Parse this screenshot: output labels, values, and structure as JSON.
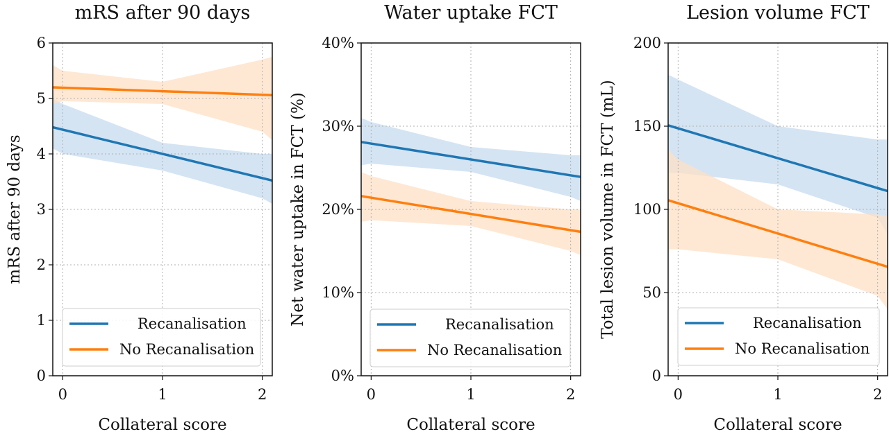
{
  "colors": {
    "recanalisation": "#1f77b4",
    "no_recanalisation": "#ff7f0e",
    "recanalisation_band": "#c6dbef",
    "no_recanalisation_band": "#fde0c5",
    "grid": "#b0b0b0"
  },
  "chart_data": [
    {
      "type": "line",
      "title": "mRS after 90 days",
      "xlabel": "Collateral score",
      "ylabel": "mRS after 90 days",
      "xlim": [
        -0.1,
        2.1
      ],
      "ylim": [
        0,
        6
      ],
      "x_ticks": [
        0,
        1,
        2
      ],
      "x_tick_labels": [
        "0",
        "1",
        "2"
      ],
      "y_ticks": [
        0,
        1,
        2,
        3,
        4,
        5,
        6
      ],
      "y_tick_labels": [
        "0",
        "1",
        "2",
        "3",
        "4",
        "5",
        "6"
      ],
      "grid": true,
      "legend_position": "lower-left",
      "series": [
        {
          "name": "Recanalisation",
          "color_key": "recanalisation",
          "x": [
            -0.1,
            2.1
          ],
          "y": [
            4.48,
            3.52
          ],
          "ci": {
            "x": [
              -0.1,
              0,
              1,
              2,
              2.1
            ],
            "lower": [
              4.1,
              4.0,
              3.7,
              3.2,
              3.1
            ],
            "upper": [
              5.0,
              4.9,
              4.2,
              4.0,
              4.0
            ]
          }
        },
        {
          "name": "No Recanalisation",
          "color_key": "no_recanalisation",
          "x": [
            -0.1,
            2.1
          ],
          "y": [
            5.2,
            5.06
          ],
          "ci": {
            "x": [
              -0.1,
              0,
              1,
              2,
              2.1
            ],
            "lower": [
              4.9,
              4.95,
              4.9,
              4.4,
              4.25
            ],
            "upper": [
              5.6,
              5.5,
              5.3,
              5.7,
              5.75
            ]
          }
        }
      ]
    },
    {
      "type": "line",
      "title": "Water uptake FCT",
      "xlabel": "Collateral score",
      "ylabel": "Net water uptake in FCT (%)",
      "xlim": [
        -0.1,
        2.1
      ],
      "ylim": [
        0,
        40
      ],
      "x_ticks": [
        0,
        1,
        2
      ],
      "x_tick_labels": [
        "0",
        "1",
        "2"
      ],
      "y_ticks": [
        0,
        10,
        20,
        30,
        40
      ],
      "y_tick_labels": [
        "0%",
        "10%",
        "20%",
        "30%",
        "40%"
      ],
      "grid": true,
      "legend_position": "lower-left",
      "series": [
        {
          "name": "Recanalisation",
          "color_key": "recanalisation",
          "x": [
            -0.1,
            2.1
          ],
          "y": [
            28.1,
            23.9
          ],
          "ci": {
            "x": [
              -0.1,
              0,
              1,
              2,
              2.1
            ],
            "lower": [
              25.3,
              25.5,
              24.5,
              21.5,
              21.0
            ],
            "upper": [
              31.0,
              30.5,
              27.5,
              26.5,
              26.5
            ]
          }
        },
        {
          "name": "No Recanalisation",
          "color_key": "no_recanalisation",
          "x": [
            -0.1,
            2.1
          ],
          "y": [
            21.6,
            17.3
          ],
          "ci": {
            "x": [
              -0.1,
              0,
              1,
              2,
              2.1
            ],
            "lower": [
              18.5,
              18.7,
              18.0,
              15.0,
              14.5
            ],
            "upper": [
              24.5,
              24.0,
              21.0,
              20.0,
              20.0
            ]
          }
        }
      ]
    },
    {
      "type": "line",
      "title": "Lesion volume FCT",
      "xlabel": "Collateral score",
      "ylabel": "Total lesion volume in FCT (mL)",
      "xlim": [
        -0.1,
        2.1
      ],
      "ylim": [
        0,
        200
      ],
      "x_ticks": [
        0,
        1,
        2
      ],
      "x_tick_labels": [
        "0",
        "1",
        "2"
      ],
      "y_ticks": [
        0,
        50,
        100,
        150,
        200
      ],
      "y_tick_labels": [
        "0",
        "50",
        "100",
        "150",
        "200"
      ],
      "grid": true,
      "legend_position": "lower-left",
      "series": [
        {
          "name": "Recanalisation",
          "color_key": "recanalisation",
          "x": [
            -0.1,
            2.1
          ],
          "y": [
            150.5,
            111
          ],
          "ci": {
            "x": [
              -0.1,
              0,
              1,
              2,
              2.1
            ],
            "lower": [
              122,
              122,
              115,
              95,
              85
            ],
            "upper": [
              181,
              178,
              150,
              142,
              142
            ]
          }
        },
        {
          "name": "No Recanalisation",
          "color_key": "no_recanalisation",
          "x": [
            -0.1,
            2.1
          ],
          "y": [
            105.5,
            65.5
          ],
          "ci": {
            "x": [
              -0.1,
              0,
              1,
              2,
              2.1
            ],
            "lower": [
              76,
              76,
              70,
              48,
              40
            ],
            "upper": [
              136,
              130,
              100,
              97,
              96
            ]
          }
        }
      ]
    }
  ]
}
